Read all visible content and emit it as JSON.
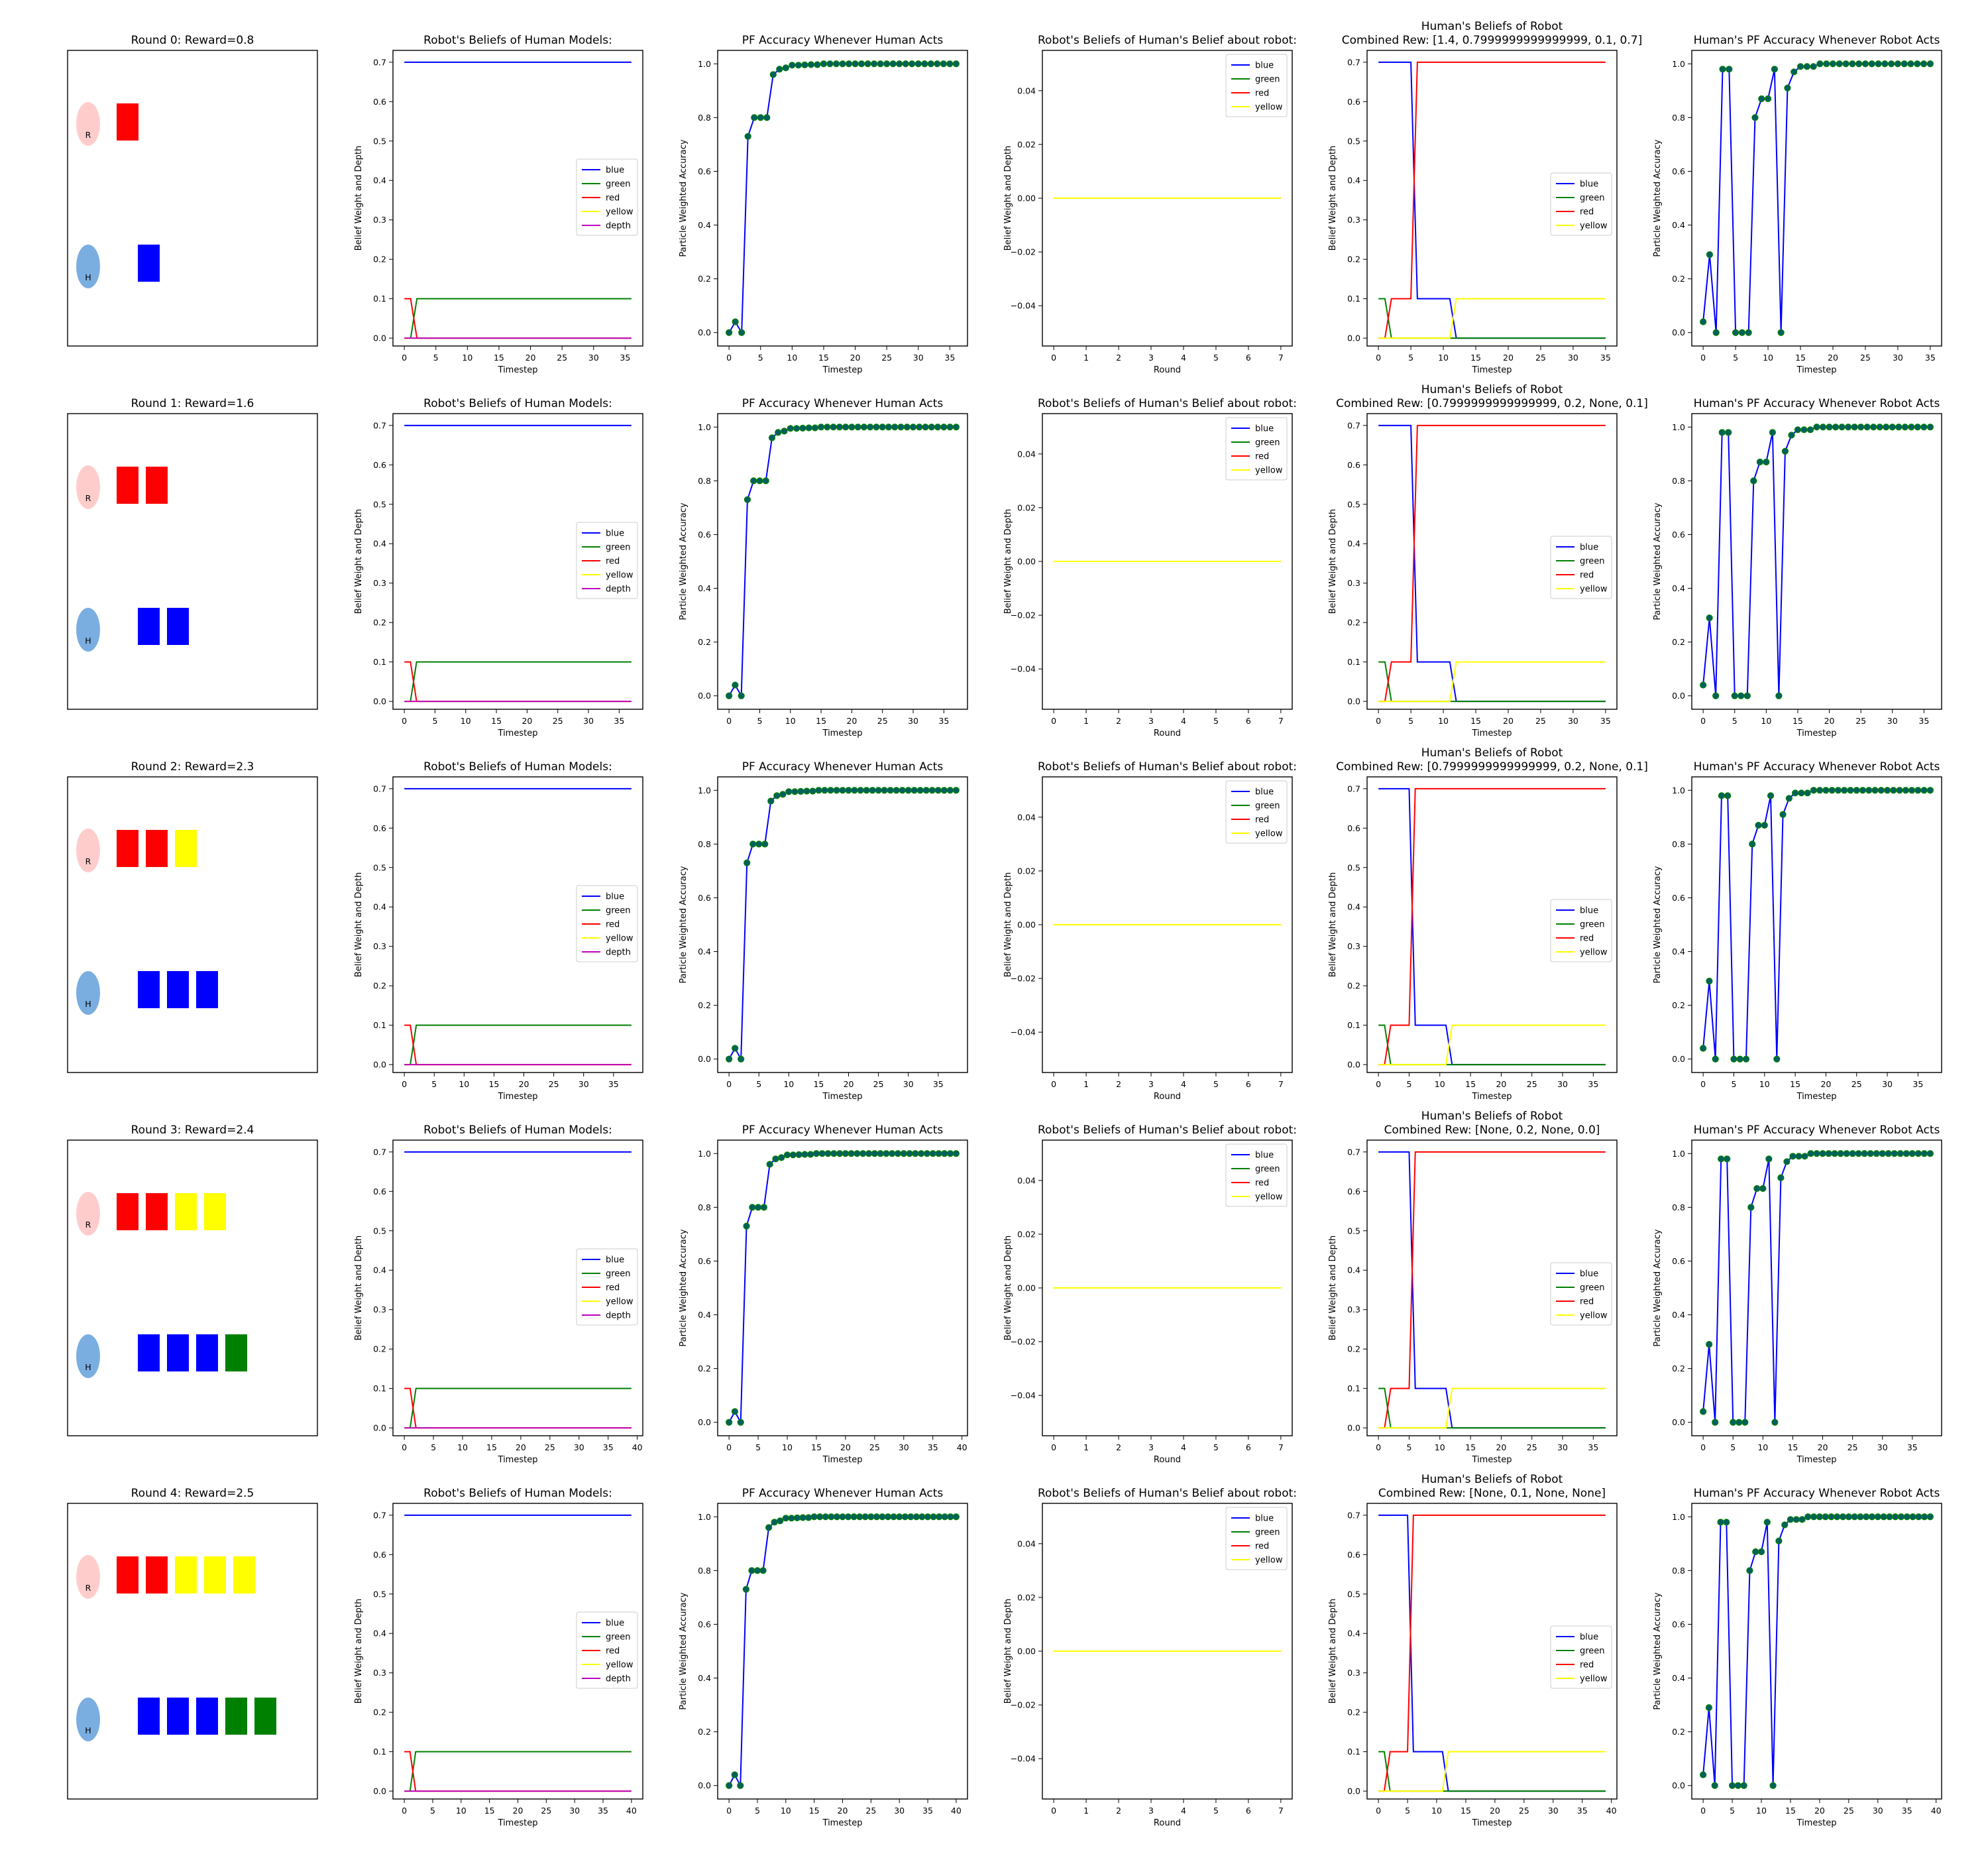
{
  "colors": {
    "blue": "#0000ff",
    "green": "#008000",
    "red": "#ff0000",
    "yellow": "#ffff00",
    "depth": "#bf00bf",
    "marker": "#006060",
    "robot_circle": "#ffcccc",
    "human_circle": "#7aaee0"
  },
  "scene": {
    "robot_label": "R",
    "human_label": "H",
    "rounds": [
      {
        "title": "Round 0: Reward=0.8",
        "robot_blocks": [
          "red"
        ],
        "human_blocks": [
          "blue"
        ]
      },
      {
        "title": "Round 1: Reward=1.6",
        "robot_blocks": [
          "red",
          "red"
        ],
        "human_blocks": [
          "blue",
          "blue"
        ]
      },
      {
        "title": "Round 2: Reward=2.3",
        "robot_blocks": [
          "red",
          "red",
          "yellow"
        ],
        "human_blocks": [
          "blue",
          "blue",
          "blue"
        ]
      },
      {
        "title": "Round 3: Reward=2.4",
        "robot_blocks": [
          "red",
          "red",
          "yellow",
          "yellow"
        ],
        "human_blocks": [
          "blue",
          "blue",
          "blue",
          "green"
        ]
      },
      {
        "title": "Round 4: Reward=2.5",
        "robot_blocks": [
          "red",
          "red",
          "yellow",
          "yellow",
          "yellow"
        ],
        "human_blocks": [
          "blue",
          "blue",
          "blue",
          "green",
          "green"
        ]
      }
    ]
  },
  "chart_data": [
    {
      "type": "line",
      "panel": "robot-beliefs-human-models",
      "title": "Robot's Beliefs of Human Models:",
      "xlabel": "Timestep",
      "ylabel": "Belief Weight and Depth",
      "ylim": [
        -0.02,
        0.73
      ],
      "yticks": [
        0.0,
        0.1,
        0.2,
        0.3,
        0.4,
        0.5,
        0.6,
        0.7
      ],
      "ytick_labels": [
        "0.0",
        "0.1",
        "0.2",
        "0.3",
        "0.4",
        "0.5",
        "0.6",
        "0.7"
      ],
      "legend": "center-right",
      "rows": [
        {
          "xlim": [
            -1.8,
            37.8
          ],
          "xticks": [
            0,
            5,
            10,
            15,
            20,
            25,
            30,
            35
          ],
          "x_end": 36
        },
        {
          "xlim": [
            -1.85,
            38.85
          ],
          "xticks": [
            0,
            5,
            10,
            15,
            20,
            25,
            30,
            35
          ],
          "x_end": 37
        },
        {
          "xlim": [
            -1.9,
            39.9
          ],
          "xticks": [
            0,
            5,
            10,
            15,
            20,
            25,
            30,
            35
          ],
          "x_end": 38
        },
        {
          "xlim": [
            -1.95,
            40.95
          ],
          "xticks": [
            0,
            5,
            10,
            15,
            20,
            25,
            30,
            35,
            40
          ],
          "x_end": 39
        },
        {
          "xlim": [
            -2.0,
            42.0
          ],
          "xticks": [
            0,
            5,
            10,
            15,
            20,
            25,
            30,
            35,
            40
          ],
          "x_end": 40
        }
      ],
      "series": [
        {
          "name": "blue",
          "color": "blue",
          "points": [
            [
              0,
              0.7
            ],
            [
              "end",
              0.7
            ]
          ]
        },
        {
          "name": "green",
          "color": "green",
          "points": [
            [
              0,
              0.0
            ],
            [
              1,
              0.0
            ],
            [
              2,
              0.1
            ],
            [
              "end",
              0.1
            ]
          ]
        },
        {
          "name": "red",
          "color": "red",
          "points": [
            [
              0,
              0.1
            ],
            [
              1,
              0.1
            ],
            [
              2,
              0.0
            ],
            [
              "end",
              0.0
            ]
          ]
        },
        {
          "name": "yellow",
          "color": "yellow",
          "points": [
            [
              0,
              0.0
            ],
            [
              "end",
              0.0
            ]
          ]
        },
        {
          "name": "depth",
          "color": "depth",
          "points": [
            [
              0,
              0.0
            ],
            [
              "end",
              0.0
            ]
          ]
        }
      ]
    },
    {
      "type": "line",
      "panel": "pf-accuracy-human-acts",
      "title": "PF Accuracy Whenever Human Acts",
      "xlabel": "Timestep",
      "ylabel": "Particle Weighted Accuracy",
      "ylim": [
        -0.05,
        1.05
      ],
      "yticks": [
        0.0,
        0.2,
        0.4,
        0.6,
        0.8,
        1.0
      ],
      "ytick_labels": [
        "0.0",
        "0.2",
        "0.4",
        "0.6",
        "0.8",
        "1.0"
      ],
      "rows": [
        {
          "xlim": [
            -1.8,
            37.8
          ],
          "xticks": [
            0,
            5,
            10,
            15,
            20,
            25,
            30,
            35
          ],
          "x_end": 36
        },
        {
          "xlim": [
            -1.85,
            38.85
          ],
          "xticks": [
            0,
            5,
            10,
            15,
            20,
            25,
            30,
            35
          ],
          "x_end": 37
        },
        {
          "xlim": [
            -1.9,
            39.9
          ],
          "xticks": [
            0,
            5,
            10,
            15,
            20,
            25,
            30,
            35
          ],
          "x_end": 38
        },
        {
          "xlim": [
            -1.95,
            40.95
          ],
          "xticks": [
            0,
            5,
            10,
            15,
            20,
            25,
            30,
            35,
            40
          ],
          "x_end": 39
        },
        {
          "xlim": [
            -2.0,
            42.0
          ],
          "xticks": [
            0,
            5,
            10,
            15,
            20,
            25,
            30,
            35,
            40
          ],
          "x_end": 40
        }
      ],
      "values": [
        0.0,
        0.04,
        0.0,
        0.73,
        0.8,
        0.8,
        0.8,
        0.96,
        0.98,
        0.985,
        0.995,
        0.995,
        0.996,
        0.997,
        0.997
      ],
      "tail_value": 1.0
    },
    {
      "type": "line",
      "panel": "robot-beliefs-human-belief-robot",
      "title": "Robot's Beliefs of Human's Belief about robot:",
      "xlabel": "Round",
      "ylabel": "Belief Weight and Depth",
      "xlim": [
        -0.35,
        7.35
      ],
      "xticks": [
        0,
        1,
        2,
        3,
        4,
        5,
        6,
        7
      ],
      "ylim": [
        -0.055,
        0.055
      ],
      "yticks": [
        -0.04,
        -0.02,
        0.0,
        0.02,
        0.04
      ],
      "ytick_labels": [
        "−0.04",
        "−0.02",
        "0.00",
        "0.02",
        "0.04"
      ],
      "legend": "top-right",
      "series": [
        {
          "name": "blue",
          "color": "blue",
          "points": [
            [
              0,
              0
            ],
            [
              7,
              0
            ]
          ]
        },
        {
          "name": "green",
          "color": "green",
          "points": [
            [
              0,
              0
            ],
            [
              7,
              0
            ]
          ]
        },
        {
          "name": "red",
          "color": "red",
          "points": [
            [
              0,
              0
            ],
            [
              7,
              0
            ]
          ]
        },
        {
          "name": "yellow",
          "color": "yellow",
          "points": [
            [
              0,
              0
            ],
            [
              7,
              0
            ]
          ]
        }
      ]
    },
    {
      "type": "line",
      "panel": "human-beliefs-robot",
      "title_line1": "Human's Beliefs of Robot",
      "titles_line2": [
        "Combined Rew: [1.4, 0.7999999999999999, 0.1, 0.7]",
        "Combined Rew: [0.7999999999999999, 0.2, None, 0.1]",
        "Combined Rew: [0.7999999999999999, 0.2, None, 0.1]",
        "Combined Rew: [None, 0.2, None, 0.0]",
        "Combined Rew: [None, 0.1, None, None]"
      ],
      "xlabel": "Timestep",
      "ylabel": "Belief Weight and Depth",
      "ylim": [
        -0.02,
        0.73
      ],
      "yticks": [
        0.0,
        0.1,
        0.2,
        0.3,
        0.4,
        0.5,
        0.6,
        0.7
      ],
      "ytick_labels": [
        "0.0",
        "0.1",
        "0.2",
        "0.3",
        "0.4",
        "0.5",
        "0.6",
        "0.7"
      ],
      "legend": "center-right",
      "rows": [
        {
          "xlim": [
            -1.75,
            36.75
          ],
          "xticks": [
            0,
            5,
            10,
            15,
            20,
            25,
            30,
            35
          ],
          "x_end": 35
        },
        {
          "xlim": [
            -1.75,
            36.75
          ],
          "xticks": [
            0,
            5,
            10,
            15,
            20,
            25,
            30,
            35
          ],
          "x_end": 35
        },
        {
          "xlim": [
            -1.85,
            38.85
          ],
          "xticks": [
            0,
            5,
            10,
            15,
            20,
            25,
            30,
            35
          ],
          "x_end": 37
        },
        {
          "xlim": [
            -1.85,
            38.85
          ],
          "xticks": [
            0,
            5,
            10,
            15,
            20,
            25,
            30,
            35
          ],
          "x_end": 37
        },
        {
          "xlim": [
            -1.95,
            40.95
          ],
          "xticks": [
            0,
            5,
            10,
            15,
            20,
            25,
            30,
            35,
            40
          ],
          "x_end": 39
        }
      ],
      "series": [
        {
          "name": "blue",
          "color": "blue",
          "points": [
            [
              0,
              0.7
            ],
            [
              5,
              0.7
            ],
            [
              6,
              0.1
            ],
            [
              11,
              0.1
            ],
            [
              12,
              0.0
            ],
            [
              "end",
              0.0
            ]
          ]
        },
        {
          "name": "green",
          "color": "green",
          "points": [
            [
              0,
              0.1
            ],
            [
              1,
              0.1
            ],
            [
              2,
              0.0
            ],
            [
              "end",
              0.0
            ]
          ]
        },
        {
          "name": "red",
          "color": "red",
          "points": [
            [
              0,
              0.0
            ],
            [
              1,
              0.0
            ],
            [
              2,
              0.1
            ],
            [
              5,
              0.1
            ],
            [
              6,
              0.7
            ],
            [
              "end",
              0.7
            ]
          ]
        },
        {
          "name": "yellow",
          "color": "yellow",
          "points": [
            [
              0,
              0.0
            ],
            [
              11,
              0.0
            ],
            [
              12,
              0.1
            ],
            [
              "end",
              0.1
            ]
          ]
        }
      ]
    },
    {
      "type": "line",
      "panel": "human-pf-accuracy-robot-acts",
      "title": "Human's PF Accuracy Whenever Robot Acts",
      "xlabel": "Timestep",
      "ylabel": "Particle Weighted Accuracy",
      "ylim": [
        -0.05,
        1.05
      ],
      "yticks": [
        0.0,
        0.2,
        0.4,
        0.6,
        0.8,
        1.0
      ],
      "ytick_labels": [
        "0.0",
        "0.2",
        "0.4",
        "0.6",
        "0.8",
        "1.0"
      ],
      "rows": [
        {
          "xlim": [
            -1.75,
            36.75
          ],
          "xticks": [
            0,
            5,
            10,
            15,
            20,
            25,
            30,
            35
          ],
          "x_end": 35
        },
        {
          "xlim": [
            -1.8,
            37.8
          ],
          "xticks": [
            0,
            5,
            10,
            15,
            20,
            25,
            30,
            35
          ],
          "x_end": 36
        },
        {
          "xlim": [
            -1.85,
            38.85
          ],
          "xticks": [
            0,
            5,
            10,
            15,
            20,
            25,
            30,
            35
          ],
          "x_end": 37
        },
        {
          "xlim": [
            -1.9,
            39.9
          ],
          "xticks": [
            0,
            5,
            10,
            15,
            20,
            25,
            30,
            35
          ],
          "x_end": 38
        },
        {
          "xlim": [
            -1.95,
            40.95
          ],
          "xticks": [
            0,
            5,
            10,
            15,
            20,
            25,
            30,
            35,
            40
          ],
          "x_end": 39
        }
      ],
      "values": [
        0.04,
        0.29,
        0.0,
        0.98,
        0.98,
        0.0,
        0.0,
        0.0,
        0.8,
        0.87,
        0.87,
        0.98,
        0.0,
        0.91,
        0.97,
        0.99,
        0.99,
        0.99,
        1.0
      ],
      "tail_value": 1.0
    }
  ]
}
